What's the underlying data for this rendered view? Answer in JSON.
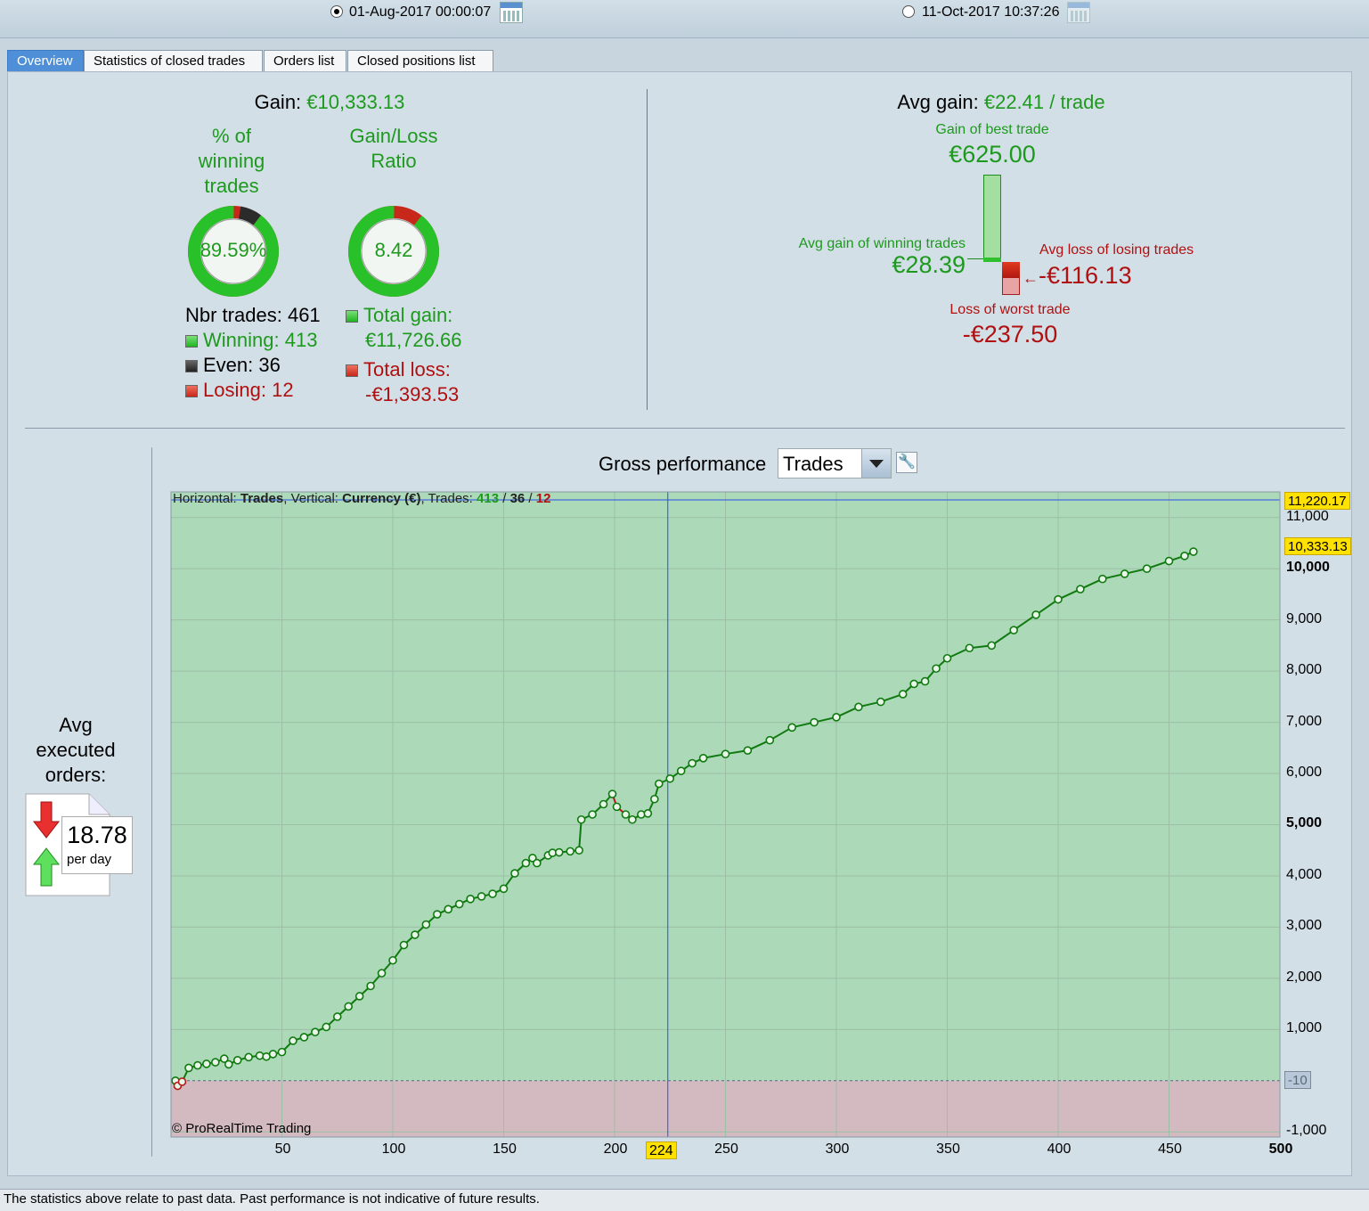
{
  "date_range": {
    "start": "01-Aug-2017 00:00:07",
    "end": "11-Oct-2017 10:37:26"
  },
  "tabs": [
    "Overview",
    "Statistics of closed trades",
    "Orders list",
    "Closed positions list"
  ],
  "overview": {
    "gain_label": "Gain:",
    "gain_value": "€10,333.13",
    "pct_winning_label_1": "% of",
    "pct_winning_label_2": "winning",
    "pct_winning_label_3": "trades",
    "pct_winning_value": "89.59%",
    "pct_winning_fraction": 0.8959,
    "ratio_label_1": "Gain/Loss",
    "ratio_label_2": "Ratio",
    "ratio_value": "8.42",
    "ratio_gain_fraction": 0.894,
    "nbr_trades_label": "Nbr trades:",
    "nbr_trades_value": "461",
    "winning_label": "Winning:",
    "winning_value": "413",
    "even_label": "Even:",
    "even_value": "36",
    "losing_label": "Losing:",
    "losing_value": "12",
    "total_gain_label": "Total gain:",
    "total_gain_value": "€11,726.66",
    "total_loss_label": "Total loss:",
    "total_loss_value": "-€1,393.53",
    "avg_gain_label": "Avg gain:",
    "avg_gain_value": "€22.41 / trade",
    "best_trade_label": "Gain of best trade",
    "best_trade_value": "€625.00",
    "avg_win_label": "Avg gain of winning trades",
    "avg_win_value": "€28.39",
    "avg_loss_label": "Avg loss of losing trades",
    "avg_loss_value": "-€116.13",
    "worst_trade_label": "Loss of worst trade",
    "worst_trade_value": "-€237.50"
  },
  "avg_orders": {
    "label_1": "Avg",
    "label_2": "executed",
    "label_3": "orders:",
    "value": "18.78",
    "unit": "per day"
  },
  "chart_header": {
    "title": "Gross performance",
    "dropdown_value": "Trades",
    "info_prefix": "Horizontal:",
    "info_h": "Trades",
    "info_mid": ", Vertical:",
    "info_v": "Currency (€)",
    "info_trades": ", Trades:",
    "info_win": "413",
    "info_even": "36",
    "info_lose": "12",
    "info_sep": "/",
    "copyright": "© ProRealTime Trading",
    "cursor_x_label": "224",
    "last_value_label": "10,333.13",
    "crosshair_y_label": "11,220.17",
    "zero_line_label": "-10"
  },
  "colors": {
    "positive_zone": "#acd9b8",
    "negative_zone": "#d3bac0",
    "line": "#107a10",
    "loss_segment": "#b81a1a",
    "crosshair": "#2a50e8"
  },
  "chart_data": {
    "type": "line",
    "title": "Gross performance",
    "xlabel": "Trades",
    "ylabel": "Currency (€)",
    "xlim": [
      0,
      500
    ],
    "ylim": [
      -1100,
      11500
    ],
    "x_ticks": [
      50,
      100,
      150,
      200,
      250,
      300,
      350,
      400,
      450,
      500
    ],
    "y_ticks": [
      -1000,
      1000,
      2000,
      3000,
      4000,
      5000,
      6000,
      7000,
      8000,
      9000,
      10000,
      11000
    ],
    "grid": true,
    "cursor_x": 224,
    "series": [
      {
        "x": [
          2,
          3,
          5,
          8,
          12,
          16,
          20,
          24,
          26,
          30,
          35,
          40,
          43,
          46,
          50,
          55,
          60,
          65,
          70,
          75,
          80,
          85,
          90,
          95,
          100,
          105,
          110,
          115,
          120,
          125,
          130,
          135,
          140,
          145,
          150,
          155,
          160,
          163,
          165,
          170,
          172,
          175,
          180,
          184,
          185,
          190,
          195,
          199,
          201,
          205,
          208,
          212,
          215,
          218,
          220,
          225,
          230,
          235,
          240,
          250,
          260,
          270,
          280,
          290,
          300,
          310,
          320,
          330,
          335,
          340,
          345,
          350,
          360,
          370,
          380,
          390,
          400,
          410,
          420,
          430,
          440,
          450,
          457,
          461
        ],
        "y": [
          0,
          -100,
          -20,
          250,
          300,
          330,
          360,
          430,
          320,
          400,
          460,
          490,
          470,
          520,
          560,
          780,
          850,
          950,
          1050,
          1250,
          1450,
          1650,
          1850,
          2100,
          2350,
          2650,
          2850,
          3050,
          3250,
          3350,
          3450,
          3550,
          3600,
          3650,
          3750,
          4050,
          4250,
          4350,
          4250,
          4400,
          4450,
          4460,
          4480,
          4500,
          5100,
          5200,
          5400,
          5600,
          5350,
          5200,
          5100,
          5200,
          5220,
          5500,
          5800,
          5900,
          6050,
          6200,
          6300,
          6380,
          6450,
          6650,
          6900,
          7000,
          7100,
          7300,
          7400,
          7550,
          7750,
          7800,
          8050,
          8250,
          8450,
          8500,
          8800,
          9100,
          9400,
          9600,
          9800,
          9900,
          10000,
          10150,
          10250,
          10333
        ]
      }
    ]
  }
}
